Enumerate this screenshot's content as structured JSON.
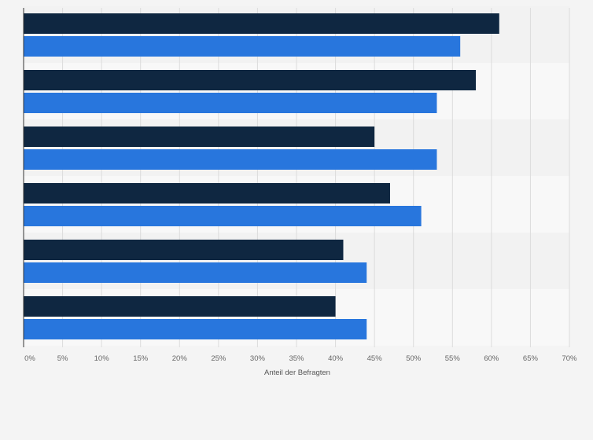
{
  "chart_data": {
    "type": "bar",
    "orientation": "horizontal",
    "xlabel": "Anteil der Befragten",
    "xlim": [
      0,
      70
    ],
    "x_ticks": [
      0,
      5,
      10,
      15,
      20,
      25,
      30,
      35,
      40,
      45,
      50,
      55,
      60,
      65,
      70
    ],
    "x_tick_labels": [
      "0%",
      "5%",
      "10%",
      "15%",
      "20%",
      "25%",
      "30%",
      "35%",
      "40%",
      "45%",
      "50%",
      "55%",
      "60%",
      "65%",
      "70%"
    ],
    "grid": true,
    "category_count": 6,
    "series": [
      {
        "color": "#0f2741",
        "values": [
          61,
          58,
          45,
          47,
          41,
          40
        ]
      },
      {
        "color": "#2876dd",
        "values": [
          56,
          53,
          53,
          51,
          44,
          44
        ]
      }
    ]
  }
}
